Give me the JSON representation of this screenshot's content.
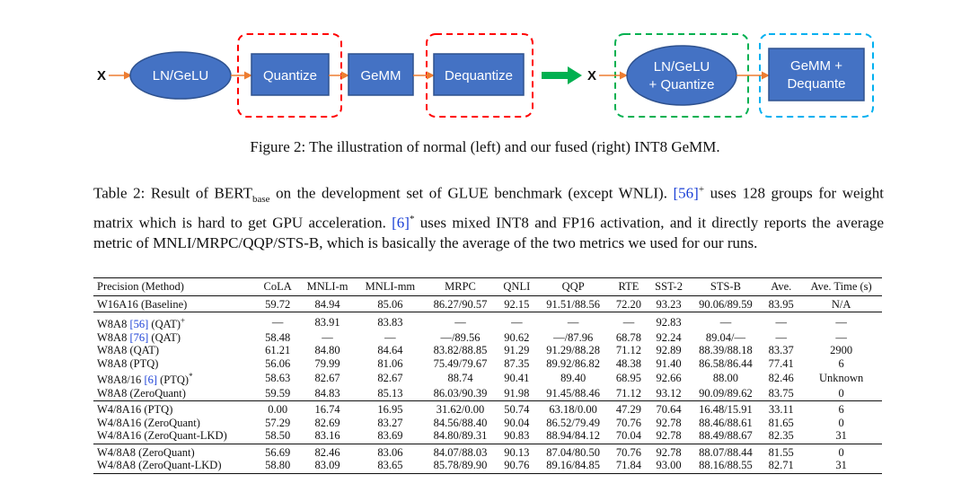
{
  "diagram": {
    "input_left": "X",
    "input_right": "X",
    "left": {
      "ln_gelu": "LN/GeLU",
      "quantize": "Quantize",
      "gemm": "GeMM",
      "dequantize": "Dequantize"
    },
    "right": {
      "fused_ln_line1": "LN/GeLU",
      "fused_ln_line2": "+ Quantize",
      "fused_gemm_line1": "GeMM +",
      "fused_gemm_line2": "Dequante"
    },
    "colors": {
      "node_fill": "#4472c4",
      "node_stroke": "#2f528f",
      "arrow": "#ed7d31",
      "big_arrow": "#00b050",
      "box_red": "#ff0000",
      "box_green": "#00b050",
      "box_blue": "#00b0f0"
    }
  },
  "figure_caption": "Figure 2: The illustration of normal (left) and our fused (right) INT8 GeMM.",
  "table_caption": {
    "part1": "Table 2: Result of BERT",
    "sub": "base",
    "part2": " on the development set of GLUE benchmark (except WNLI). ",
    "ref1": "[56]",
    "sup1": "+",
    "part3": " uses 128 groups for weight matrix which is hard to get GPU acceleration. ",
    "ref2": "[6]",
    "sup2": "*",
    "part4": " uses mixed INT8 and FP16 activation, and it directly reports the average metric of MNLI/MRPC/QQP/STS-B, which is basically the average of the two metrics we used for our runs."
  },
  "table": {
    "headers": [
      "Precision (Method)",
      "CoLA",
      "MNLI-m",
      "MNLI-mm",
      "MRPC",
      "QNLI",
      "QQP",
      "RTE",
      "SST-2",
      "STS-B",
      "Ave.",
      "Ave. Time (s)"
    ],
    "groups": [
      [
        {
          "method": "W16A16 (Baseline)",
          "cells": [
            "59.72",
            "84.94",
            "85.06",
            "86.27/90.57",
            "92.15",
            "91.51/88.56",
            "72.20",
            "93.23",
            "90.06/89.59",
            "83.95",
            "N/A"
          ]
        }
      ],
      [
        {
          "method_pre": "W8A8 ",
          "ref": "[56]",
          "method_post": " (QAT)",
          "sup": "+",
          "cells": [
            "—",
            "83.91",
            "83.83",
            "—",
            "—",
            "—",
            "—",
            "92.83",
            "—",
            "—",
            "—"
          ]
        },
        {
          "method_pre": "W8A8 ",
          "ref": "[76]",
          "method_post": " (QAT)",
          "cells": [
            "58.48",
            "—",
            "—",
            "—/89.56",
            "90.62",
            "—/87.96",
            "68.78",
            "92.24",
            "89.04/—",
            "—",
            "—"
          ]
        },
        {
          "method": "W8A8 (QAT)",
          "cells": [
            "61.21",
            "84.80",
            "84.64",
            "83.82/88.85",
            "91.29",
            "91.29/88.28",
            "71.12",
            "92.89",
            "88.39/88.18",
            "83.37",
            "2900"
          ]
        },
        {
          "method": "W8A8 (PTQ)",
          "cells": [
            "56.06",
            "79.99",
            "81.06",
            "75.49/79.67",
            "87.35",
            "89.92/86.82",
            "48.38",
            "91.40",
            "86.58/86.44",
            "77.41",
            "6"
          ]
        },
        {
          "method_pre": "W8A8/16 ",
          "ref": "[6]",
          "method_post": " (PTQ)",
          "sup": "*",
          "cells": [
            "58.63",
            "82.67",
            "82.67",
            "88.74",
            "90.41",
            "89.40",
            "68.95",
            "92.66",
            "88.00",
            "82.46",
            "Unknown"
          ]
        },
        {
          "method": "W8A8 (ZeroQuant)",
          "cells": [
            "59.59",
            "84.83",
            "85.13",
            "86.03/90.39",
            "91.98",
            "91.45/88.46",
            "71.12",
            "93.12",
            "90.09/89.62",
            "83.75",
            "0"
          ]
        }
      ],
      [
        {
          "method": "W4/8A16 (PTQ)",
          "cells": [
            "0.00",
            "16.74",
            "16.95",
            "31.62/0.00",
            "50.74",
            "63.18/0.00",
            "47.29",
            "70.64",
            "16.48/15.91",
            "33.11",
            "6"
          ]
        },
        {
          "method": "W4/8A16 (ZeroQuant)",
          "cells": [
            "57.29",
            "82.69",
            "83.27",
            "84.56/88.40",
            "90.04",
            "86.52/79.49",
            "70.76",
            "92.78",
            "88.46/88.61",
            "81.65",
            "0"
          ]
        },
        {
          "method": "W4/8A16 (ZeroQuant-LKD)",
          "cells": [
            "58.50",
            "83.16",
            "83.69",
            "84.80/89.31",
            "90.83",
            "88.94/84.12",
            "70.04",
            "92.78",
            "88.49/88.67",
            "82.35",
            "31"
          ]
        }
      ],
      [
        {
          "method": "W4/8A8 (ZeroQuant)",
          "cells": [
            "56.69",
            "82.46",
            "83.06",
            "84.07/88.03",
            "90.13",
            "87.04/80.50",
            "70.76",
            "92.78",
            "88.07/88.44",
            "81.55",
            "0"
          ]
        },
        {
          "method": "W4/8A8 (ZeroQuant-LKD)",
          "cells": [
            "58.80",
            "83.09",
            "83.65",
            "85.78/89.90",
            "90.76",
            "89.16/84.85",
            "71.84",
            "93.00",
            "88.16/88.55",
            "82.71",
            "31"
          ]
        }
      ]
    ]
  }
}
